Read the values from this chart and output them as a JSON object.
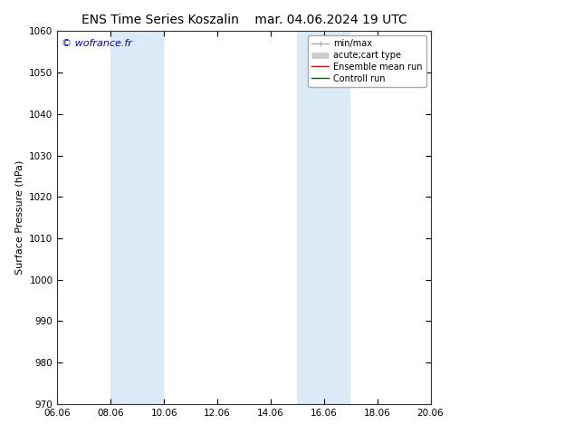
{
  "title_left": "ENS Time Series Koszalin",
  "title_right": "mar. 04.06.2024 19 UTC",
  "ylabel": "Surface Pressure (hPa)",
  "ylim": [
    970,
    1060
  ],
  "yticks": [
    970,
    980,
    990,
    1000,
    1010,
    1020,
    1030,
    1040,
    1050,
    1060
  ],
  "xlim_num": [
    0,
    14
  ],
  "xtick_labels": [
    "06.06",
    "08.06",
    "10.06",
    "12.06",
    "14.06",
    "16.06",
    "18.06",
    "20.06"
  ],
  "xtick_positions": [
    0,
    2,
    4,
    6,
    8,
    10,
    12,
    14
  ],
  "shaded_bands": [
    {
      "xmin": 2.0,
      "xmax": 4.0
    },
    {
      "xmin": 9.0,
      "xmax": 11.0
    }
  ],
  "shade_color": "#daeaf7",
  "watermark": "© wofrance.fr",
  "watermark_color": "#0000cc",
  "background_color": "#ffffff",
  "plot_bg_color": "#ffffff",
  "legend_items": [
    {
      "label": "min/max",
      "color": "#aaaaaa",
      "lw": 1.0
    },
    {
      "label": "acute;cart type",
      "color": "#cccccc",
      "lw": 5
    },
    {
      "label": "Ensemble mean run",
      "color": "#ff0000",
      "lw": 1.0
    },
    {
      "label": "Controll run",
      "color": "#006600",
      "lw": 1.0
    }
  ],
  "title_fontsize": 10,
  "axis_label_fontsize": 8,
  "tick_fontsize": 7.5,
  "legend_fontsize": 7,
  "watermark_fontsize": 8,
  "figsize": [
    6.34,
    4.9
  ],
  "dpi": 100
}
